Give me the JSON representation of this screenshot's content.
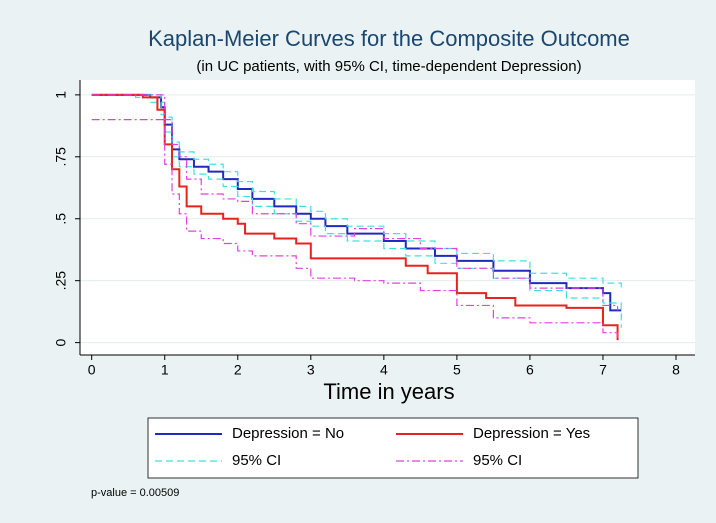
{
  "chart_data": {
    "type": "step",
    "title": "Kaplan-Meier Curves for the Composite Outcome",
    "subtitle": "(in UC patients, with 95% CI, time-dependent Depression)",
    "x_label": "Time in years",
    "note": "p-value = 0.00509",
    "xlim": [
      -0.16,
      8.26
    ],
    "ylim": [
      -0.05,
      1.06
    ],
    "xticks": [
      0,
      1,
      2,
      3,
      4,
      5,
      6,
      7,
      8
    ],
    "yticks": [
      0,
      {
        "value": 0.25,
        "label": ".25"
      },
      {
        "value": 0.5,
        "label": ".5"
      },
      {
        "value": 0.75,
        "label": ".75"
      },
      1
    ],
    "grid": true,
    "series": [
      {
        "name": "Depression = No",
        "color": "#1f2bbf",
        "dash": "none",
        "x": [
          0,
          0.6,
          0.8,
          0.95,
          1.0,
          1.1,
          1.2,
          1.4,
          1.6,
          1.8,
          2.0,
          2.2,
          2.5,
          2.8,
          3.0,
          3.2,
          3.5,
          4.0,
          4.3,
          4.7,
          5.0,
          5.5,
          6.0,
          6.5,
          7.0,
          7.1,
          7.25
        ],
        "values": [
          1,
          1,
          0.99,
          0.95,
          0.88,
          0.78,
          0.74,
          0.71,
          0.69,
          0.66,
          0.62,
          0.58,
          0.55,
          0.52,
          0.5,
          0.47,
          0.44,
          0.41,
          0.38,
          0.35,
          0.33,
          0.29,
          0.24,
          0.22,
          0.2,
          0.13,
          0.13
        ]
      },
      {
        "name": "95% CI",
        "color": "#3ee0e0",
        "dash": "7 4",
        "x": [
          0,
          0.6,
          0.8,
          0.95,
          1.0,
          1.1,
          1.2,
          1.4,
          1.6,
          1.8,
          2.0,
          2.2,
          2.5,
          2.8,
          3.0,
          3.2,
          3.5,
          4.0,
          4.3,
          4.7,
          5.0,
          5.5,
          6.0,
          6.5,
          7.0,
          7.25
        ],
        "upper": [
          1,
          1,
          1,
          0.97,
          0.91,
          0.81,
          0.77,
          0.74,
          0.72,
          0.69,
          0.65,
          0.61,
          0.58,
          0.55,
          0.53,
          0.5,
          0.47,
          0.44,
          0.41,
          0.38,
          0.36,
          0.33,
          0.28,
          0.26,
          0.24,
          0.21
        ],
        "lower": [
          1,
          0.99,
          0.97,
          0.92,
          0.85,
          0.75,
          0.71,
          0.68,
          0.66,
          0.63,
          0.59,
          0.55,
          0.52,
          0.49,
          0.47,
          0.44,
          0.41,
          0.38,
          0.35,
          0.32,
          0.3,
          0.26,
          0.21,
          0.18,
          0.16,
          0.06
        ]
      },
      {
        "name": "Depression = Yes",
        "color": "#e8231b",
        "dash": "none",
        "x": [
          0,
          0.7,
          0.9,
          1.0,
          1.1,
          1.2,
          1.3,
          1.5,
          1.8,
          2.0,
          2.1,
          2.5,
          2.8,
          3.0,
          4.0,
          4.3,
          4.6,
          5.0,
          5.4,
          5.8,
          6.5,
          7.0,
          7.2
        ],
        "values": [
          1,
          0.99,
          0.94,
          0.8,
          0.7,
          0.63,
          0.55,
          0.52,
          0.5,
          0.48,
          0.44,
          0.42,
          0.4,
          0.34,
          0.34,
          0.31,
          0.28,
          0.2,
          0.18,
          0.15,
          0.14,
          0.07,
          0.01
        ]
      },
      {
        "name": "95% CI",
        "color": "#e040e0",
        "dash": "8 3 2 3",
        "x": [
          0,
          0.8,
          1.0,
          1.1,
          1.2,
          1.3,
          1.5,
          1.8,
          2.0,
          2.2,
          2.8,
          3.0,
          3.6,
          4.0,
          4.5,
          5.0,
          5.5,
          6.0,
          7.0,
          7.2
        ],
        "upper": [
          1,
          1,
          0.9,
          0.8,
          0.75,
          0.66,
          0.6,
          0.58,
          0.57,
          0.52,
          0.48,
          0.43,
          0.46,
          0.42,
          0.38,
          0.3,
          0.26,
          0.22,
          0.15,
          0.13
        ],
        "lower": [
          0.9,
          0.9,
          0.72,
          0.6,
          0.52,
          0.45,
          0.42,
          0.4,
          0.37,
          0.35,
          0.3,
          0.26,
          0.25,
          0.24,
          0.21,
          0.15,
          0.1,
          0.08,
          0.04,
          0.02
        ]
      }
    ]
  }
}
